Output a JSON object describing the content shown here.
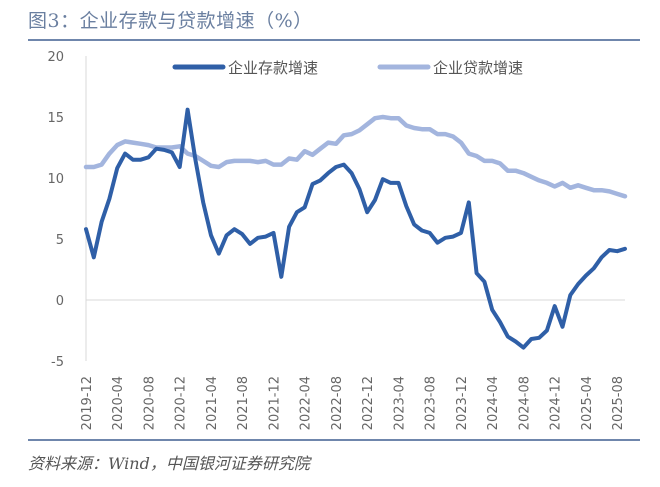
{
  "title": "图3：企业存款与贷款增速（%）",
  "source": "资料来源：Wind，中国银河证券研究院",
  "chart_data": {
    "type": "line",
    "title": "图3：企业存款与贷款增速（%）",
    "xlabel": "",
    "ylabel": "",
    "ylim": [
      -5,
      20
    ],
    "yticks": [
      -5,
      0,
      5,
      10,
      15,
      20
    ],
    "grid": false,
    "legend_position": "top",
    "x": [
      "2019-12",
      "2020-01",
      "2020-02",
      "2020-03",
      "2020-04",
      "2020-05",
      "2020-06",
      "2020-07",
      "2020-08",
      "2020-09",
      "2020-10",
      "2020-11",
      "2020-12",
      "2021-01",
      "2021-02",
      "2021-03",
      "2021-04",
      "2021-05",
      "2021-06",
      "2021-07",
      "2021-08",
      "2021-09",
      "2021-10",
      "2021-11",
      "2021-12",
      "2022-01",
      "2022-02",
      "2022-03",
      "2022-04",
      "2022-05",
      "2022-06",
      "2022-07",
      "2022-08",
      "2022-09",
      "2022-10",
      "2022-11",
      "2022-12",
      "2023-01",
      "2023-02",
      "2023-03",
      "2023-04",
      "2023-05",
      "2023-06",
      "2023-07",
      "2023-08",
      "2023-09",
      "2023-10",
      "2023-11",
      "2023-12",
      "2024-01",
      "2024-02",
      "2024-03",
      "2024-04",
      "2024-05",
      "2024-06",
      "2024-07",
      "2024-08",
      "2024-09",
      "2024-10",
      "2024-11",
      "2024-12",
      "2025-01",
      "2025-02",
      "2025-03",
      "2025-04",
      "2025-05",
      "2025-06",
      "2025-07",
      "2025-08",
      "2025-09"
    ],
    "xtick_labels": [
      "2019-12",
      "2020-04",
      "2020-08",
      "2020-12",
      "2021-04",
      "2021-08",
      "2021-12",
      "2022-04",
      "2022-08",
      "2022-12",
      "2023-04",
      "2023-08",
      "2023-12",
      "2024-04",
      "2024-08",
      "2024-12",
      "2025-04",
      "2025-08"
    ],
    "series": [
      {
        "name": "企业存款增速",
        "color": "#2f5fa7",
        "values": [
          5.8,
          3.5,
          6.4,
          8.3,
          10.8,
          12.0,
          11.5,
          11.5,
          11.7,
          12.4,
          12.3,
          12.1,
          10.9,
          15.6,
          11.5,
          8.0,
          5.3,
          3.8,
          5.3,
          5.8,
          5.4,
          4.6,
          5.1,
          5.2,
          5.5,
          1.9,
          6.0,
          7.2,
          7.6,
          9.5,
          9.8,
          10.4,
          10.9,
          11.1,
          10.4,
          9.1,
          7.2,
          8.2,
          9.9,
          9.6,
          9.6,
          7.7,
          6.2,
          5.7,
          5.5,
          4.7,
          5.1,
          5.2,
          5.5,
          8.0,
          2.2,
          1.5,
          -0.8,
          -1.8,
          -3.0,
          -3.4,
          -3.9,
          -3.2,
          -3.1,
          -2.5,
          -0.5,
          -2.2,
          0.4,
          1.3,
          2.0,
          2.6,
          3.5,
          4.1,
          4.0,
          4.2
        ]
      },
      {
        "name": "企业贷款增速",
        "color": "#a3b5de",
        "values": [
          10.9,
          10.9,
          11.1,
          12.0,
          12.7,
          13.0,
          12.9,
          12.8,
          12.7,
          12.5,
          12.5,
          12.5,
          12.6,
          12.0,
          11.8,
          11.4,
          11.0,
          10.9,
          11.3,
          11.4,
          11.4,
          11.4,
          11.3,
          11.4,
          11.1,
          11.1,
          11.6,
          11.5,
          12.2,
          11.9,
          12.4,
          12.9,
          12.8,
          13.5,
          13.6,
          13.9,
          14.4,
          14.9,
          15.0,
          14.9,
          14.9,
          14.3,
          14.1,
          14.0,
          14.0,
          13.6,
          13.6,
          13.4,
          12.9,
          12.0,
          11.8,
          11.4,
          11.4,
          11.2,
          10.6,
          10.6,
          10.4,
          10.1,
          9.8,
          9.6,
          9.3,
          9.6,
          9.2,
          9.4,
          9.2,
          9.0,
          9.0,
          8.9,
          8.7,
          8.5
        ]
      }
    ]
  }
}
